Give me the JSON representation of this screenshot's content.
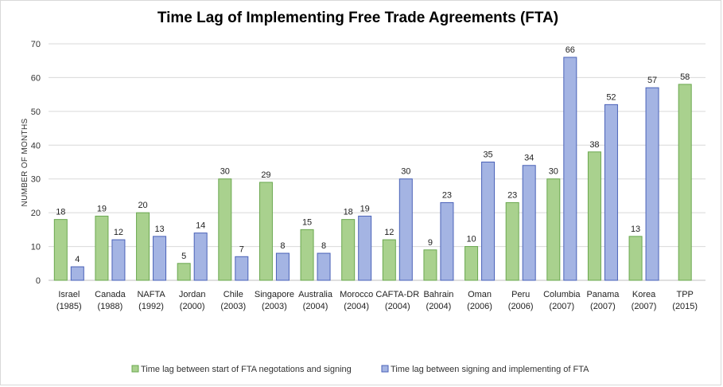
{
  "chart_data": {
    "type": "bar",
    "title": "Time Lag of Implementing Free Trade Agreements (FTA)",
    "xlabel": "",
    "ylabel": "NUMBER OF MONTHS",
    "ylim": [
      0,
      70
    ],
    "yticks": [
      0,
      10,
      20,
      30,
      40,
      50,
      60,
      70
    ],
    "grid": true,
    "legend_position": "bottom",
    "categories": [
      {
        "name": "Israel",
        "year": "(1985)"
      },
      {
        "name": "Canada",
        "year": "(1988)"
      },
      {
        "name": "NAFTA",
        "year": "(1992)"
      },
      {
        "name": "Jordan",
        "year": "(2000)"
      },
      {
        "name": "Chile",
        "year": "(2003)"
      },
      {
        "name": "Singapore",
        "year": "(2003)"
      },
      {
        "name": "Australia",
        "year": "(2004)"
      },
      {
        "name": "Morocco",
        "year": "(2004)"
      },
      {
        "name": "CAFTA-DR",
        "year": "(2004)"
      },
      {
        "name": "Bahrain",
        "year": "(2004)"
      },
      {
        "name": "Oman",
        "year": "(2006)"
      },
      {
        "name": "Peru",
        "year": "(2006)"
      },
      {
        "name": "Columbia",
        "year": "(2007)"
      },
      {
        "name": "Panama",
        "year": "(2007)"
      },
      {
        "name": "Korea",
        "year": "(2007)"
      },
      {
        "name": "TPP",
        "year": "(2015)"
      }
    ],
    "series": [
      {
        "name": "Time lag between start of FTA negotations and signing",
        "color": "#a9d18e",
        "stroke": "#6aa84f",
        "values": [
          18,
          19,
          20,
          5,
          30,
          29,
          15,
          18,
          12,
          9,
          10,
          23,
          30,
          38,
          13,
          58
        ]
      },
      {
        "name": "Time lag between signing and implementing of FTA",
        "color": "#a4b4e3",
        "stroke": "#4a62b8",
        "values": [
          4,
          12,
          13,
          14,
          7,
          8,
          8,
          19,
          30,
          23,
          35,
          34,
          66,
          52,
          57,
          null
        ]
      }
    ]
  }
}
